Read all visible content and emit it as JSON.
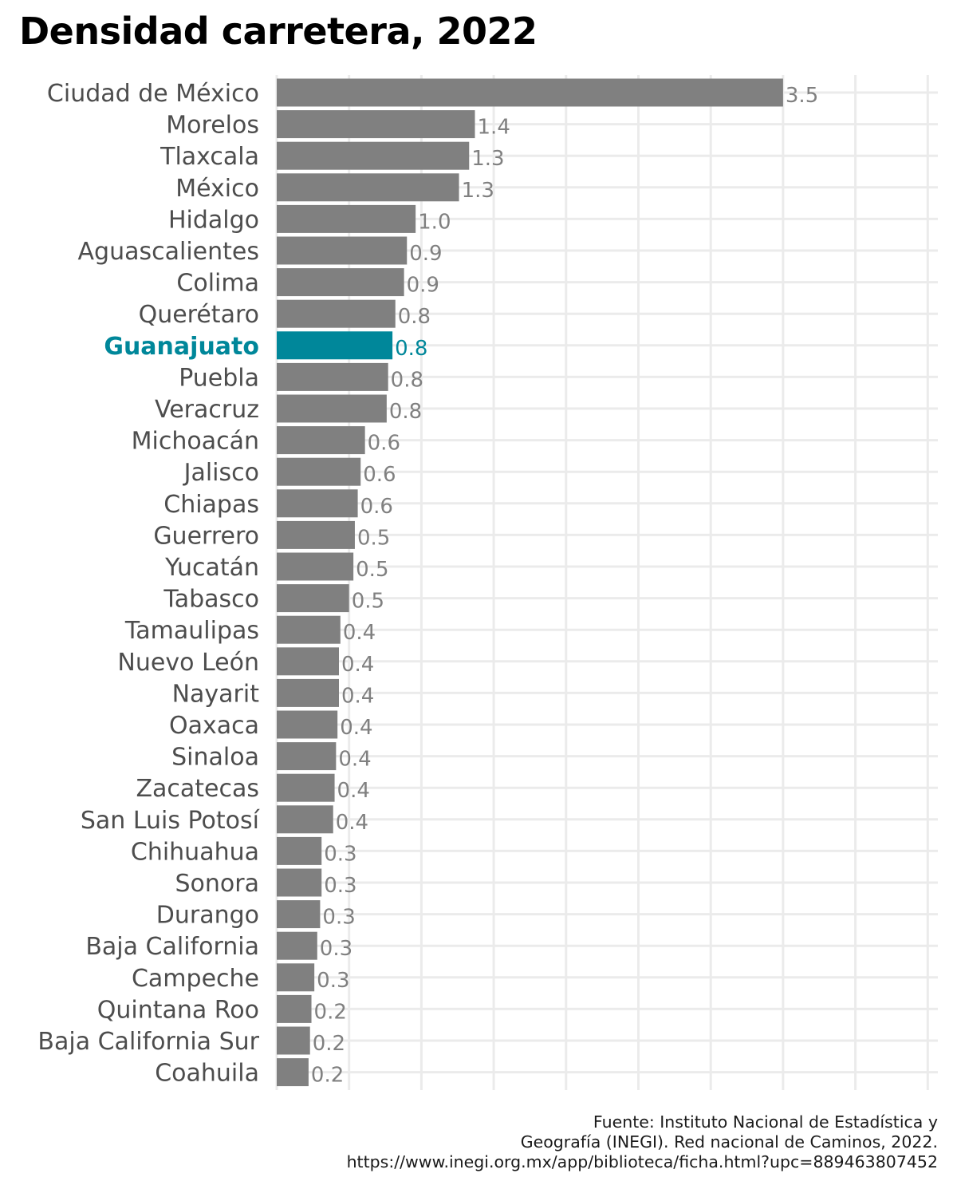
{
  "title": "Densidad carretera, 2022",
  "source": [
    "Fuente: Instituto Nacional de Estadística y",
    "Geografía (INEGI). Red nacional de Caminos, 2022.",
    "https://www.inegi.org.mx/app/biblioteca/ficha.html?upc=889463807452"
  ],
  "chart_data": {
    "type": "bar",
    "orientation": "horizontal",
    "title": "Densidad carretera, 2022",
    "xlabel": "",
    "ylabel": "",
    "xlim": [
      0,
      4.5
    ],
    "grid": true,
    "highlight": "Guanajuato",
    "colors": {
      "default": "#808080",
      "highlight": "#00879a"
    },
    "categories": [
      "Ciudad de México",
      "Morelos",
      "Tlaxcala",
      "México",
      "Hidalgo",
      "Aguascalientes",
      "Colima",
      "Querétaro",
      "Guanajuato",
      "Puebla",
      "Veracruz",
      "Michoacán",
      "Jalisco",
      "Chiapas",
      "Guerrero",
      "Yucatán",
      "Tabasco",
      "Tamaulipas",
      "Nuevo León",
      "Nayarit",
      "Oaxaca",
      "Sinaloa",
      "Zacatecas",
      "San Luis Potosí",
      "Chihuahua",
      "Sonora",
      "Durango",
      "Baja California",
      "Campeche",
      "Quintana Roo",
      "Baja California Sur",
      "Coahuila"
    ],
    "values": [
      3.5,
      1.37,
      1.33,
      1.26,
      0.96,
      0.9,
      0.88,
      0.82,
      0.8,
      0.77,
      0.76,
      0.61,
      0.58,
      0.56,
      0.54,
      0.53,
      0.5,
      0.44,
      0.43,
      0.43,
      0.42,
      0.41,
      0.4,
      0.39,
      0.31,
      0.31,
      0.3,
      0.28,
      0.26,
      0.24,
      0.23,
      0.22
    ],
    "value_labels": [
      "3.5",
      "1.4",
      "1.3",
      "1.3",
      "1.0",
      "0.9",
      "0.9",
      "0.8",
      "0.8",
      "0.8",
      "0.8",
      "0.6",
      "0.6",
      "0.6",
      "0.5",
      "0.5",
      "0.5",
      "0.4",
      "0.4",
      "0.4",
      "0.4",
      "0.4",
      "0.4",
      "0.4",
      "0.3",
      "0.3",
      "0.3",
      "0.3",
      "0.3",
      "0.2",
      "0.2",
      "0.2"
    ]
  }
}
